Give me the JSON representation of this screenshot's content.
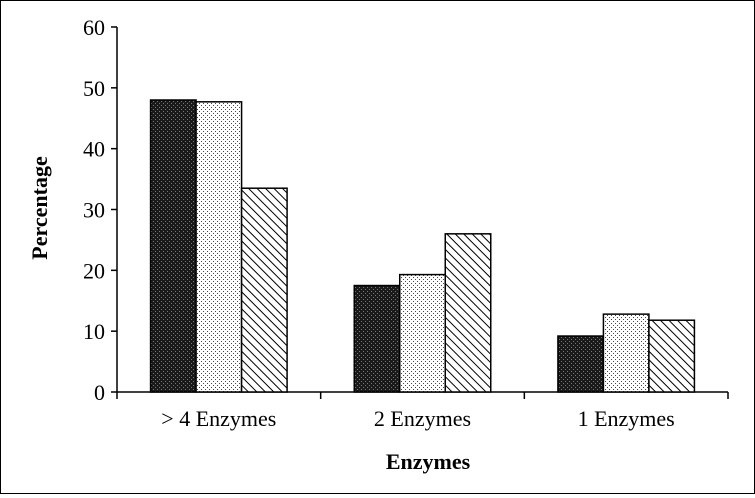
{
  "chart_data": {
    "type": "bar",
    "title": "",
    "xlabel": "Enzymes",
    "ylabel": "Percentage",
    "categories": [
      "> 4 Enzymes",
      "2 Enzymes",
      "1 Enzymes"
    ],
    "series": [
      {
        "values": [
          48,
          17.5,
          9.2
        ],
        "pattern": "dense-dark",
        "color": "#000000"
      },
      {
        "values": [
          47.7,
          19.3,
          12.8
        ],
        "pattern": "light-dots",
        "color": "#000000"
      },
      {
        "values": [
          33.5,
          26,
          11.8
        ],
        "pattern": "diagonal-hatch",
        "color": "#000000"
      }
    ],
    "ylim": [
      0,
      60
    ],
    "yticks": [
      "0",
      "10",
      "20",
      "30",
      "40",
      "50",
      "60"
    ],
    "grid": false,
    "legend": "none"
  }
}
